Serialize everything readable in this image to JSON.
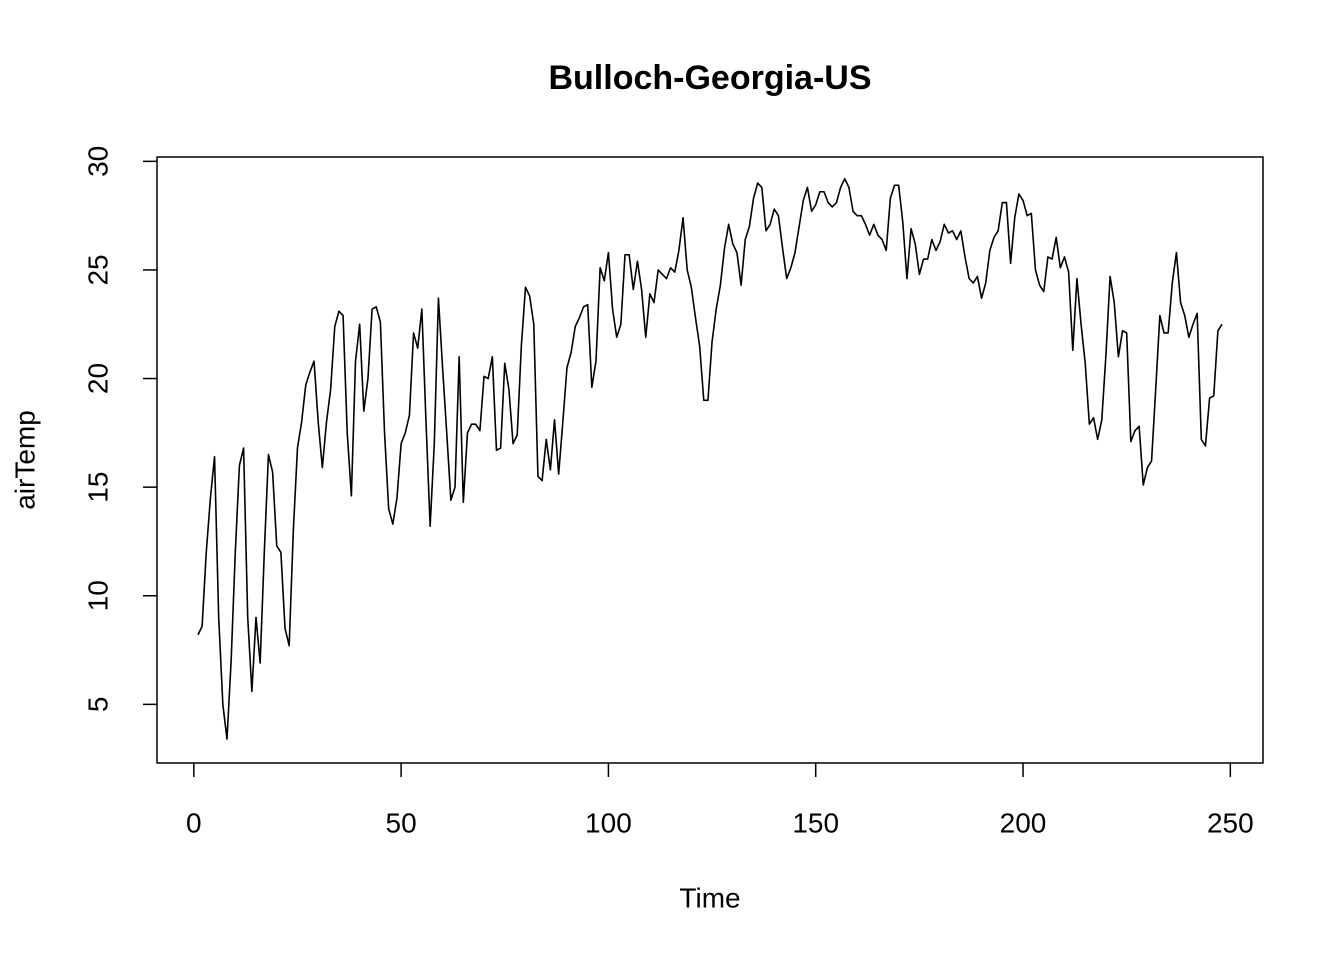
{
  "chart_data": {
    "type": "line",
    "title": "Bulloch-Georgia-US",
    "x_label": "Time",
    "y_label": "airTemp",
    "x": [
      1,
      2,
      3,
      4,
      5,
      6,
      7,
      8,
      9,
      10,
      11,
      12,
      13,
      14,
      15,
      16,
      17,
      18,
      19,
      20,
      21,
      22,
      23,
      24,
      25,
      26,
      27,
      28,
      29,
      30,
      31,
      32,
      33,
      34,
      35,
      36,
      37,
      38,
      39,
      40,
      41,
      42,
      43,
      44,
      45,
      46,
      47,
      48,
      49,
      50,
      51,
      52,
      53,
      54,
      55,
      56,
      57,
      58,
      59,
      60,
      61,
      62,
      63,
      64,
      65,
      66,
      67,
      68,
      69,
      70,
      71,
      72,
      73,
      74,
      75,
      76,
      77,
      78,
      79,
      80,
      81,
      82,
      83,
      84,
      85,
      86,
      87,
      88,
      89,
      90,
      91,
      92,
      93,
      94,
      95,
      96,
      97,
      98,
      99,
      100,
      101,
      102,
      103,
      104,
      105,
      106,
      107,
      108,
      109,
      110,
      111,
      112,
      113,
      114,
      115,
      116,
      117,
      118,
      119,
      120,
      121,
      122,
      123,
      124,
      125,
      126,
      127,
      128,
      129,
      130,
      131,
      132,
      133,
      134,
      135,
      136,
      137,
      138,
      139,
      140,
      141,
      142,
      143,
      144,
      145,
      146,
      147,
      148,
      149,
      150,
      151,
      152,
      153,
      154,
      155,
      156,
      157,
      158,
      159,
      160,
      161,
      162,
      163,
      164,
      165,
      166,
      167,
      168,
      169,
      170,
      171,
      172,
      173,
      174,
      175,
      176,
      177,
      178,
      179,
      180,
      181,
      182,
      183,
      184,
      185,
      186,
      187,
      188,
      189,
      190,
      191,
      192,
      193,
      194,
      195,
      196,
      197,
      198,
      199,
      200,
      201,
      202,
      203,
      204,
      205,
      206,
      207,
      208,
      209,
      210,
      211,
      212,
      213,
      214,
      215,
      216,
      217,
      218,
      219,
      220,
      221,
      222,
      223,
      224,
      225,
      226,
      227,
      228,
      229,
      230,
      231,
      232,
      233,
      234,
      235,
      236,
      237,
      238,
      239,
      240,
      241,
      242,
      243,
      244,
      245,
      246,
      247,
      248
    ],
    "series": [
      {
        "name": "airTemp",
        "color": "#000000",
        "values": [
          8.2,
          8.6,
          12,
          14.5,
          16.4,
          9,
          5,
          3.4,
          7,
          12,
          16,
          16.8,
          9,
          5.6,
          9,
          6.9,
          12,
          16.5,
          15.7,
          12.3,
          12,
          8.5,
          7.7,
          13,
          16.8,
          18,
          19.7,
          20.3,
          20.8,
          18,
          15.9,
          18,
          19.5,
          22.4,
          23.1,
          22.9,
          17.5,
          14.6,
          20.8,
          22.5,
          18.5,
          20,
          23.2,
          23.3,
          22.6,
          17.5,
          14,
          13.3,
          14.5,
          17,
          17.5,
          18.3,
          22.1,
          21.4,
          23.2,
          18,
          13.2,
          17,
          23.7,
          20.5,
          17.5,
          14.4,
          15,
          21,
          14.3,
          17.5,
          17.9,
          17.9,
          17.6,
          20.1,
          20,
          21,
          16.7,
          16.8,
          20.7,
          19.5,
          17,
          17.4,
          21.5,
          24.2,
          23.8,
          22.5,
          15.5,
          15.3,
          17.2,
          15.8,
          18.1,
          15.6,
          18,
          20.5,
          21.2,
          22.4,
          22.8,
          23.3,
          23.4,
          19.6,
          20.8,
          25.1,
          24.5,
          25.8,
          23.2,
          21.9,
          22.5,
          25.7,
          25.7,
          24.1,
          25.4,
          24.1,
          21.9,
          23.9,
          23.5,
          25,
          24.8,
          24.6,
          25.1,
          24.9,
          25.9,
          27.4,
          25,
          24.2,
          22.8,
          21.5,
          19,
          19,
          21.7,
          23.2,
          24.3,
          26,
          27.1,
          26.2,
          25.8,
          24.3,
          26.4,
          27,
          28.3,
          29,
          28.8,
          26.8,
          27.1,
          27.8,
          27.5,
          26,
          24.6,
          25.1,
          25.8,
          27,
          28.2,
          28.8,
          27.7,
          28,
          28.6,
          28.6,
          28.1,
          27.9,
          28.1,
          28.8,
          29.2,
          28.8,
          27.7,
          27.5,
          27.5,
          27.1,
          26.6,
          27.1,
          26.6,
          26.4,
          25.9,
          28.3,
          28.9,
          28.9,
          27.2,
          24.6,
          26.9,
          26.2,
          24.8,
          25.5,
          25.5,
          26.4,
          25.9,
          26.3,
          27.1,
          26.7,
          26.8,
          26.4,
          26.8,
          25.6,
          24.6,
          24.4,
          24.7,
          23.7,
          24.4,
          25.9,
          26.5,
          26.8,
          28.1,
          28.1,
          25.3,
          27.4,
          28.5,
          28.2,
          27.5,
          27.6,
          25,
          24.3,
          24,
          25.6,
          25.5,
          26.5,
          25.1,
          25.6,
          24.9,
          21.3,
          24.6,
          22.5,
          20.7,
          17.9,
          18.2,
          17.2,
          18.1,
          21.1,
          24.7,
          23.5,
          21,
          22.2,
          22.1,
          17.1,
          17.6,
          17.8,
          15.1,
          15.9,
          16.2,
          19.5,
          22.9,
          22.1,
          22.1,
          24.4,
          25.8,
          23.5,
          22.9,
          21.9,
          22.5,
          23,
          17.2,
          16.9,
          19.1,
          19.2,
          22.2,
          22.5
        ]
      }
    ],
    "xlim": [
      -8.88,
      257.88
    ],
    "xticks": [
      0,
      50,
      100,
      150,
      200,
      250
    ],
    "ylim": [
      2.3,
      30.2
    ],
    "yticks": [
      5,
      10,
      15,
      20,
      25,
      30
    ]
  }
}
